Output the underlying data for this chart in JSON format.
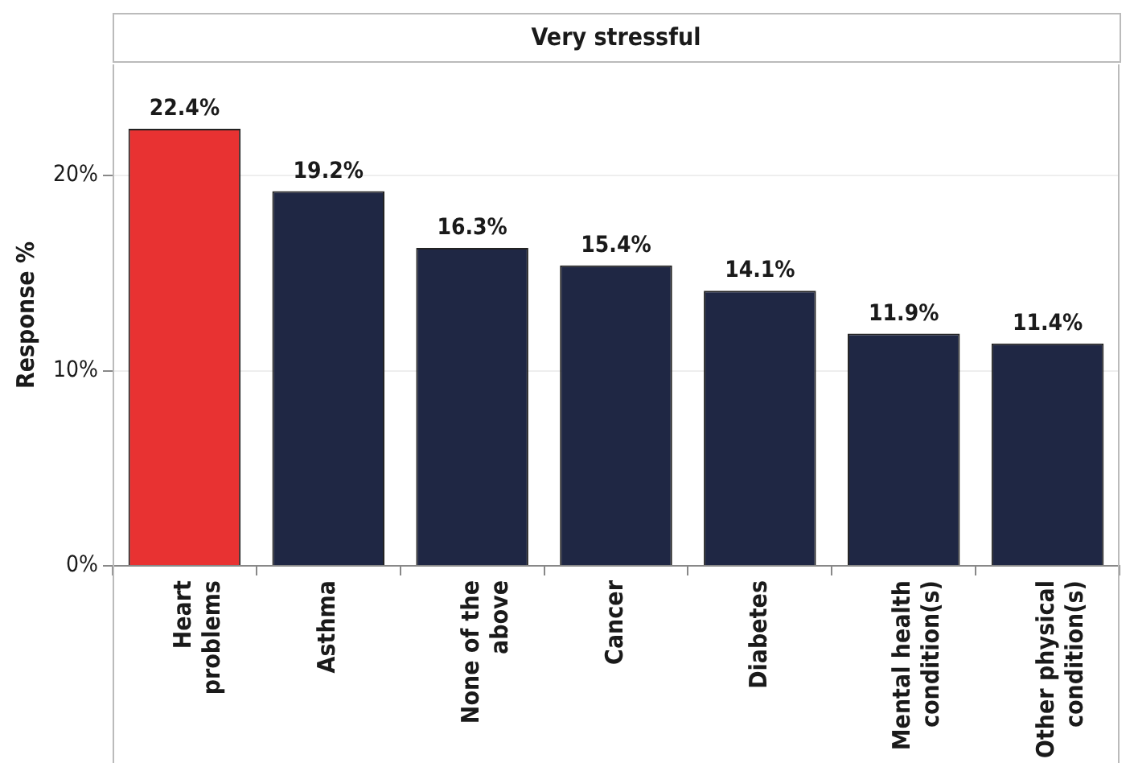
{
  "chart_data": {
    "type": "bar",
    "title": "Very stressful",
    "ylabel": "Response %",
    "categories": [
      "Heart\nproblems",
      "Asthma",
      "None of the\nabove",
      "Cancer",
      "Diabetes",
      "Mental health\ncondition(s)",
      "Other physical\ncondition(s)"
    ],
    "values": [
      22.4,
      19.2,
      16.3,
      15.4,
      14.1,
      11.9,
      11.4
    ],
    "colors": [
      "#e83232",
      "#1f2744",
      "#1f2744",
      "#1f2744",
      "#1f2744",
      "#1f2744",
      "#1f2744"
    ],
    "value_labels": [
      "22.4%",
      "19.2%",
      "16.3%",
      "15.4%",
      "14.1%",
      "11.9%",
      "11.4%"
    ],
    "ylim": [
      0,
      25.7
    ],
    "yticks": [
      {
        "value": 0,
        "label": "0%"
      },
      {
        "value": 10,
        "label": "10%"
      },
      {
        "value": 20,
        "label": "20%"
      }
    ],
    "grid": "y",
    "legend": false
  }
}
